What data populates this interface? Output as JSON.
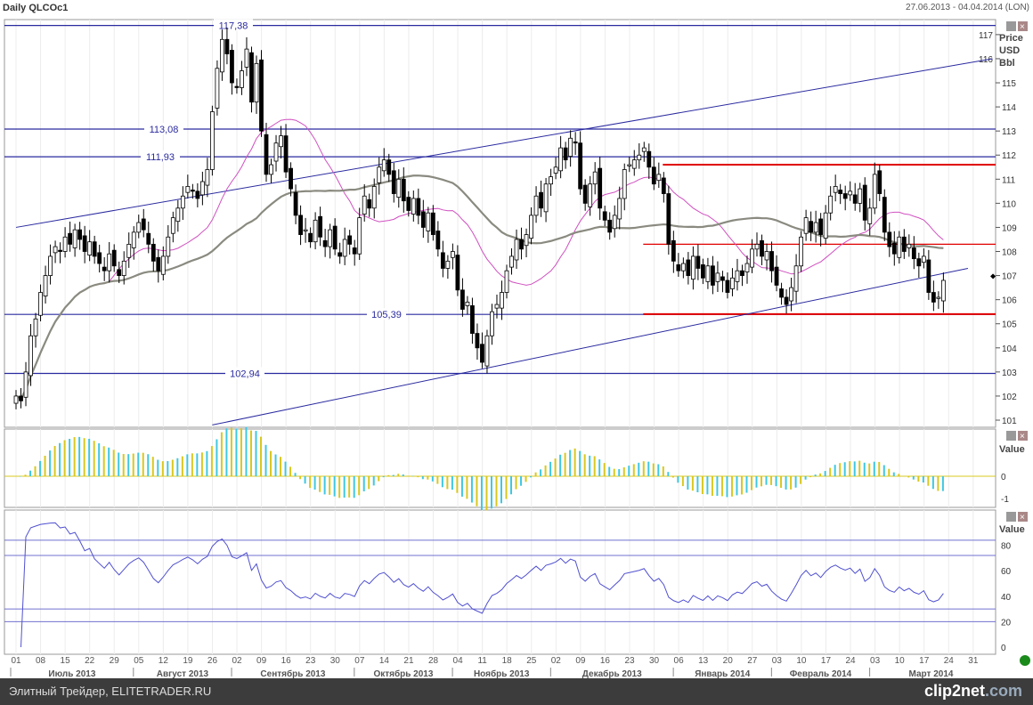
{
  "header": {
    "title": "Daily QLCOc1",
    "date_range": "27.06.2013 - 04.04.2014 (LON)"
  },
  "footer": {
    "text": "Элитный Трейдер, ELITETRADER.RU",
    "logo": "clip2net",
    "logo_suffix": ".com"
  },
  "colors": {
    "candle_up": "#ffffff",
    "candle_down": "#000000",
    "level_line": "#2a2aa0",
    "support_red": "#e00000",
    "ma_fast": "#d050c0",
    "ma_slow": "#8a8a80",
    "macd_a": "#40c8e0",
    "macd_b": "#d8c820",
    "rsi": "#5050d0"
  },
  "chart_data": [
    {
      "type": "candlestick",
      "title": "Daily QLCOc1",
      "axis_title": [
        "Price",
        "USD",
        "Bbl"
      ],
      "ylim": [
        100.8,
        118
      ],
      "yticks": [
        101,
        102,
        103,
        104,
        105,
        106,
        107,
        108,
        109,
        110,
        111,
        112,
        113,
        114,
        115,
        116,
        117
      ],
      "start_date": "2013-07-01",
      "closes": [
        102.0,
        101.8,
        103.0,
        104.5,
        105.2,
        106.3,
        107.0,
        107.8,
        108.2,
        108.0,
        108.6,
        108.3,
        108.9,
        108.5,
        108.0,
        108.4,
        107.8,
        107.5,
        107.2,
        107.9,
        107.4,
        107.0,
        107.6,
        108.3,
        108.8,
        109.2,
        108.9,
        108.3,
        107.6,
        107.2,
        107.8,
        108.6,
        109.4,
        109.8,
        110.3,
        110.7,
        110.5,
        110.2,
        110.9,
        111.4,
        113.8,
        115.6,
        116.8,
        116.2,
        115.0,
        114.8,
        115.5,
        116.4,
        114.2,
        115.8,
        113.0,
        111.2,
        111.6,
        112.5,
        112.8,
        111.3,
        110.6,
        109.5,
        108.7,
        108.9,
        108.4,
        109.3,
        108.6,
        108.2,
        108.9,
        108.1,
        107.8,
        108.5,
        108.3,
        107.9,
        109.4,
        110.3,
        109.8,
        110.7,
        111.5,
        111.8,
        111.2,
        110.4,
        111.0,
        110.1,
        109.7,
        110.2,
        109.5,
        109.0,
        109.6,
        108.7,
        108.1,
        107.3,
        107.6,
        108.0,
        106.4,
        105.6,
        105.9,
        104.6,
        104.0,
        103.4,
        104.5,
        105.5,
        105.8,
        106.3,
        107.2,
        107.8,
        108.5,
        108.1,
        108.7,
        109.5,
        110.3,
        109.8,
        110.8,
        111.1,
        111.5,
        112.3,
        111.8,
        112.7,
        112.5,
        110.6,
        110.0,
        110.8,
        111.3,
        109.8,
        109.3,
        108.8,
        109.5,
        110.2,
        111.4,
        111.6,
        111.8,
        112.0,
        112.3,
        111.5,
        110.8,
        111.2,
        110.4,
        108.3,
        107.6,
        107.2,
        107.5,
        107.0,
        107.8,
        107.3,
        106.9,
        107.4,
        106.6,
        107.1,
        106.8,
        106.3,
        106.9,
        107.2,
        107.0,
        107.5,
        108.1,
        108.3,
        107.8,
        108.0,
        107.2,
        106.6,
        106.1,
        105.8,
        106.5,
        107.4,
        108.6,
        109.4,
        108.8,
        109.2,
        108.7,
        109.6,
        110.3,
        110.7,
        110.4,
        110.2,
        110.5,
        110.0,
        110.6,
        109.3,
        109.8,
        111.2,
        110.4,
        108.8,
        108.2,
        107.9,
        108.6,
        108.0,
        108.3,
        107.7,
        107.4,
        107.8,
        106.3,
        105.9,
        106.1,
        106.8
      ],
      "levels": [
        {
          "value": 117.38,
          "label": "117,38"
        },
        {
          "value": 113.08,
          "label": "113,08"
        },
        {
          "value": 111.93,
          "label": "111,93"
        },
        {
          "value": 105.39,
          "label": "105,39"
        },
        {
          "value": 102.94,
          "label": "102,94"
        }
      ],
      "red_levels": [
        111.6,
        108.3,
        105.4
      ],
      "trendlines": [
        {
          "from": [
            "2013-07-01",
            109.0
          ],
          "to": [
            "2014-04-04",
            116.0
          ]
        },
        {
          "from": [
            "2013-08-26",
            100.8
          ],
          "to": [
            "2014-03-28",
            107.3
          ]
        }
      ],
      "moving_averages": [
        {
          "period": 20,
          "color": "#d050c0"
        },
        {
          "period": 50,
          "color": "#8a8a80"
        }
      ],
      "last_price_marker": 107
    },
    {
      "type": "bar",
      "indicator": "MACD histogram",
      "axis_title": "Value",
      "ylim": [
        -1.1,
        2.0
      ],
      "yticks": [
        0,
        -1
      ]
    },
    {
      "type": "line",
      "indicator": "RSI",
      "axis_title": "Value",
      "ylim": [
        0,
        90
      ],
      "yticks": [
        0,
        20,
        40,
        60,
        80
      ],
      "guide_levels": [
        84,
        72,
        30,
        20
      ]
    }
  ],
  "xaxis": {
    "day_labels": [
      "01",
      "08",
      "15",
      "22",
      "29",
      "05",
      "12",
      "19",
      "26",
      "02",
      "09",
      "16",
      "23",
      "30",
      "07",
      "14",
      "21",
      "28",
      "04",
      "11",
      "18",
      "25",
      "02",
      "09",
      "16",
      "23",
      "30",
      "06",
      "13",
      "20",
      "27",
      "03",
      "10",
      "17",
      "24",
      "03",
      "10",
      "17",
      "24",
      "31"
    ],
    "months": [
      {
        "label": "Июль 2013",
        "start": 0,
        "span": 5
      },
      {
        "label": "Август 2013",
        "start": 5,
        "span": 4
      },
      {
        "label": "Сентябрь 2013",
        "start": 9,
        "span": 5
      },
      {
        "label": "Октябрь 2013",
        "start": 14,
        "span": 4
      },
      {
        "label": "Ноябрь 2013",
        "start": 18,
        "span": 4
      },
      {
        "label": "Декабрь 2013",
        "start": 22,
        "span": 5
      },
      {
        "label": "Январь 2014",
        "start": 27,
        "span": 4
      },
      {
        "label": "Февраль 2014",
        "start": 31,
        "span": 4
      },
      {
        "label": "Март 2014",
        "start": 35,
        "span": 5
      }
    ]
  }
}
